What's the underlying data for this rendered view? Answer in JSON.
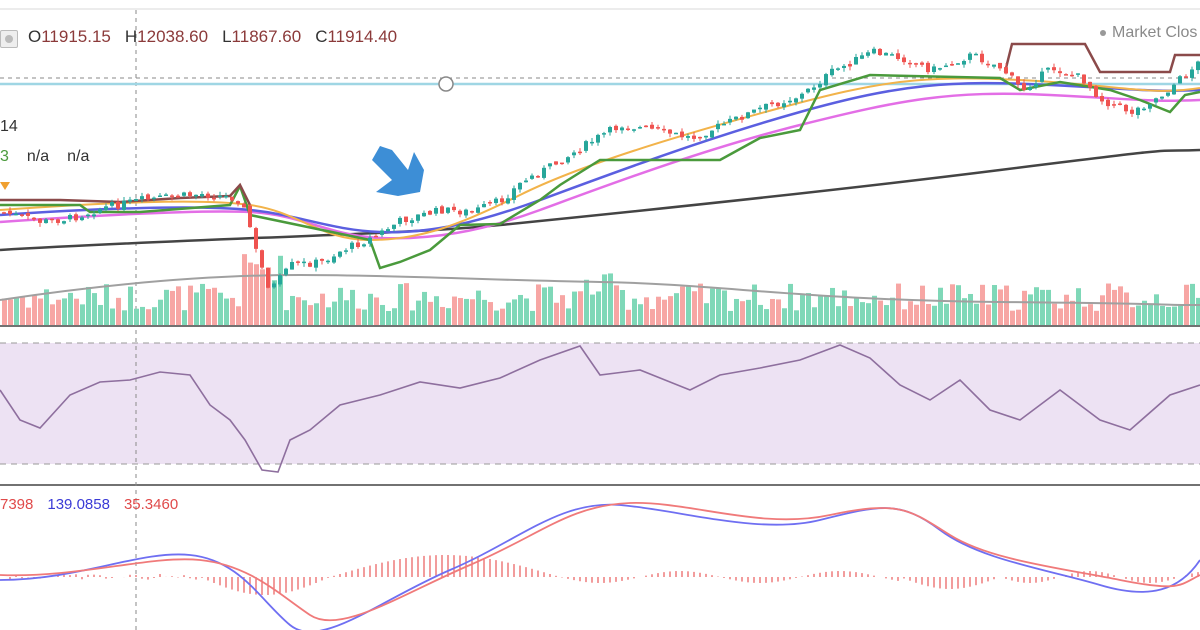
{
  "header": {
    "open_label": "O",
    "open_value": "11915.15",
    "high_label": "H",
    "high_value": "12038.60",
    "low_label": "L",
    "low_value": "11867.60",
    "close_label": "C",
    "close_value": "11914.40",
    "market_status": "Market Clos"
  },
  "indicator_labels": {
    "period": "14",
    "green_value": "3",
    "na_1": "n/a",
    "na_2": "n/a"
  },
  "macd_labels": {
    "macd": "7398",
    "signal": "139.0858",
    "histogram": "35.3460"
  },
  "colors": {
    "up": "#26a69a",
    "down": "#ef5350",
    "vol_up": "#7fd8b8",
    "vol_down": "#f7a6a4",
    "ema_fast": "#f2b34a",
    "ema_mid": "#5b5fe0",
    "ema_slow": "#e36ee6",
    "sma_long": "#444444",
    "stop_green": "#4a9a3c",
    "stop_red": "#8b4a4a",
    "rsi_line": "#8e6f9e",
    "rsi_band": "#ece0f2",
    "macd_line": "#6f6ff2",
    "signal_line": "#f07a7a",
    "hist": "#e85a5a",
    "arrow": "#3d8ed6",
    "hline": "#8fd0e0"
  },
  "chart_data": {
    "type": "candlestick",
    "ohlc_last": {
      "open": 11915.15,
      "high": 12038.6,
      "low": 11867.6,
      "close": 11914.4
    }
  }
}
